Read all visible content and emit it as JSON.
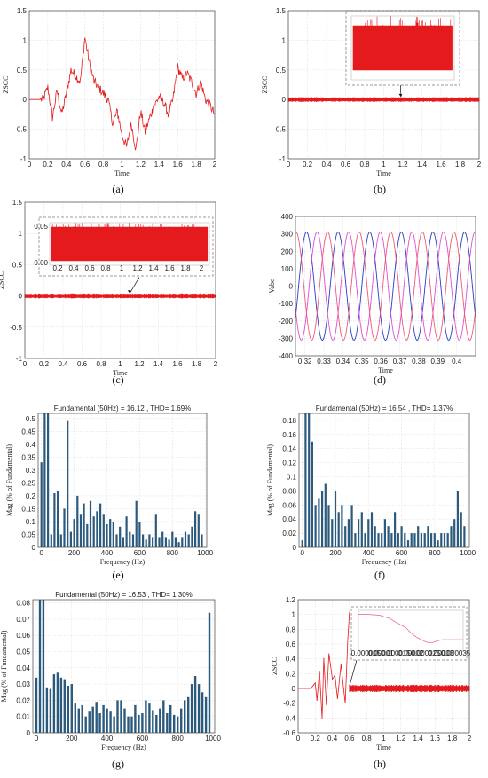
{
  "captions": [
    "(a)",
    "(b)",
    "(c)",
    "(d)",
    "(e)",
    "(f)",
    "(g)",
    "(h)"
  ],
  "colors": {
    "red": "#e41a1c",
    "blue": "#2a3cc8",
    "magenta": "#e04fd0",
    "pink": "#ef5a7a",
    "bar": "#2b5a7d",
    "grid": "#d0d0d0",
    "frame": "#444444"
  },
  "chart_data": [
    {
      "id": "a",
      "type": "line",
      "subtype": "noisy-signal",
      "xlabel": "Time",
      "ylabel": "ZSCC",
      "xlim": [
        0,
        2
      ],
      "ylim": [
        -1,
        1.5
      ],
      "xticks": [
        "0",
        "0.2",
        "0.4",
        "0.6",
        "0.8",
        "1",
        "1.2",
        "1.4",
        "1.6",
        "1.8",
        "2"
      ],
      "yticks": [
        "-1",
        "-0.5",
        "0",
        "0.5",
        "1",
        "1.5"
      ],
      "x": [
        0,
        0.1,
        0.15,
        0.2,
        0.25,
        0.3,
        0.35,
        0.4,
        0.45,
        0.5,
        0.55,
        0.6,
        0.65,
        0.7,
        0.75,
        0.8,
        0.85,
        0.9,
        0.95,
        1.0,
        1.05,
        1.1,
        1.15,
        1.2,
        1.25,
        1.3,
        1.35,
        1.4,
        1.45,
        1.5,
        1.55,
        1.6,
        1.65,
        1.7,
        1.75,
        1.8,
        1.85,
        1.9,
        1.95,
        2.0
      ],
      "y": [
        0,
        0,
        0,
        0.2,
        -0.3,
        0.15,
        -0.25,
        0.1,
        0.5,
        0.4,
        0.3,
        1.05,
        0.6,
        0.3,
        0.2,
        0.1,
        0.0,
        -0.4,
        -0.2,
        -0.6,
        -0.8,
        -0.4,
        -0.85,
        -0.2,
        -0.55,
        -0.3,
        -0.1,
        0.05,
        -0.05,
        -0.25,
        0.0,
        0.55,
        0.35,
        0.45,
        0.3,
        0.1,
        0.3,
        0.0,
        -0.1,
        -0.25
      ],
      "noise_amplitude": 0.08
    },
    {
      "id": "b",
      "type": "line",
      "subtype": "dense-band",
      "xlabel": "Time",
      "ylabel": "ZSCC",
      "xlim": [
        0,
        2
      ],
      "ylim": [
        -1,
        1.5
      ],
      "xticks": [
        "0",
        "0.2",
        "0.4",
        "0.6",
        "0.8",
        "1",
        "1.2",
        "1.4",
        "1.6",
        "1.8",
        "2"
      ],
      "yticks": [
        "-1",
        "-0.5",
        "0",
        "0.5",
        "1",
        "1.5"
      ],
      "band_center": 0,
      "band_halfwidth": 0.04,
      "inset": {
        "band_low": 0.15,
        "band_high": 0.85
      }
    },
    {
      "id": "c",
      "type": "line",
      "subtype": "dense-band",
      "xlabel": "Time",
      "ylabel": "ZSCC",
      "xlim": [
        0,
        2
      ],
      "ylim": [
        -1,
        1.5
      ],
      "xticks": [
        "0",
        "0.2",
        "0.4",
        "0.6",
        "0.8",
        "1",
        "1.2",
        "1.4",
        "1.6",
        "1.8",
        "2"
      ],
      "yticks": [
        "-1",
        "-0.5",
        "0",
        "0.5",
        "1",
        "1.5"
      ],
      "band_center": 0,
      "band_halfwidth": 0.04,
      "inset": {
        "band_low": 0.1,
        "band_high": 0.9,
        "xticks": [
          "0.2",
          "0.4",
          "0.6",
          "0.8",
          "1",
          "1.2",
          "1.4",
          "1.6",
          "1.8",
          "2"
        ],
        "yticks": [
          "0.00",
          "0.05"
        ]
      }
    },
    {
      "id": "d",
      "type": "line",
      "subtype": "three-phase",
      "xlabel": "Time",
      "ylabel": "Vabc",
      "xlim": [
        0.315,
        0.41
      ],
      "ylim": [
        -400,
        400
      ],
      "xticks": [
        "0.32",
        "0.33",
        "0.34",
        "0.35",
        "0.36",
        "0.37",
        "0.38",
        "0.39",
        "0.4"
      ],
      "xtick_values": [
        0.32,
        0.33,
        0.34,
        0.35,
        0.36,
        0.37,
        0.38,
        0.39,
        0.4
      ],
      "yticks": [
        "-400",
        "-300",
        "-200",
        "-100",
        "0",
        "100",
        "200",
        "300",
        "400"
      ],
      "amplitude": 311,
      "frequency_hz": 60,
      "series": [
        {
          "color_key": "blue",
          "phase_deg": 0
        },
        {
          "color_key": "magenta",
          "phase_deg": -120
        },
        {
          "color_key": "pink",
          "phase_deg": 120
        }
      ]
    },
    {
      "id": "e",
      "type": "bar",
      "title": "Fundamental (50Hz) = 16.12 , THD= 1.69%",
      "xlabel": "Frequency (Hz)",
      "ylabel": "Mag (% of Fundamental)",
      "xlim": [
        -20,
        1010
      ],
      "ylim": [
        0,
        0.52
      ],
      "xticks": [
        "0",
        "200",
        "400",
        "600",
        "800",
        "1000"
      ],
      "yticks": [
        "0",
        "0.05",
        "0.1",
        "0.15",
        "0.2",
        "0.25",
        "0.3",
        "0.35",
        "0.4",
        "0.45",
        "0.5"
      ],
      "bar_width_hz": 12,
      "x": [
        0,
        20,
        40,
        60,
        80,
        100,
        120,
        140,
        160,
        180,
        200,
        220,
        240,
        260,
        280,
        300,
        320,
        340,
        360,
        380,
        400,
        420,
        440,
        460,
        480,
        500,
        520,
        540,
        560,
        580,
        600,
        620,
        640,
        660,
        680,
        700,
        720,
        740,
        760,
        780,
        800,
        820,
        840,
        860,
        880,
        900,
        920,
        940,
        960,
        980
      ],
      "y": [
        0.33,
        0.52,
        0.52,
        0.05,
        0.21,
        0.22,
        0.05,
        0.15,
        0.49,
        0.06,
        0.11,
        0.2,
        0.13,
        0.17,
        0.09,
        0.18,
        0.12,
        0.14,
        0.17,
        0.13,
        0.09,
        0.11,
        0.1,
        0.05,
        0.08,
        0.04,
        0.12,
        0.06,
        0.05,
        0.18,
        0.1,
        0.05,
        0.03,
        0.05,
        0.04,
        0.13,
        0.04,
        0.06,
        0.04,
        0.03,
        0.06,
        0.04,
        0.02,
        0.04,
        0.06,
        0.05,
        0.08,
        0.14,
        0.13,
        0.05
      ]
    },
    {
      "id": "f",
      "type": "bar",
      "title": "Fundamental (50Hz) = 16.54 , THD= 1.37%",
      "xlabel": "Frequency (Hz)",
      "ylabel": "Mag (% of Fundamental)",
      "xlim": [
        -20,
        1010
      ],
      "ylim": [
        0,
        0.19
      ],
      "xticks": [
        "0",
        "200",
        "400",
        "600",
        "800",
        "1000"
      ],
      "yticks": [
        "0",
        "0.02",
        "0.04",
        "0.06",
        "0.08",
        "0.1",
        "0.12",
        "0.14",
        "0.16",
        "0.18"
      ],
      "bar_width_hz": 12,
      "x": [
        0,
        20,
        40,
        60,
        80,
        100,
        120,
        140,
        160,
        180,
        200,
        220,
        240,
        260,
        280,
        300,
        320,
        340,
        360,
        380,
        400,
        420,
        440,
        460,
        480,
        500,
        520,
        540,
        560,
        580,
        600,
        620,
        640,
        660,
        680,
        700,
        720,
        740,
        760,
        780,
        800,
        820,
        840,
        860,
        880,
        900,
        920,
        940,
        960,
        980
      ],
      "y": [
        0.01,
        0.19,
        0.19,
        0.15,
        0.06,
        0.07,
        0.08,
        0.09,
        0.06,
        0.04,
        0.08,
        0.05,
        0.06,
        0.03,
        0.04,
        0.06,
        0.02,
        0.04,
        0.05,
        0.02,
        0.04,
        0.05,
        0.03,
        0.02,
        0.02,
        0.04,
        0.03,
        0.02,
        0.05,
        0.02,
        0.03,
        0.02,
        0.01,
        0.02,
        0.02,
        0.03,
        0.02,
        0.02,
        0.03,
        0.02,
        0.02,
        0.01,
        0.02,
        0.02,
        0.02,
        0.03,
        0.04,
        0.08,
        0.05,
        0.03
      ]
    },
    {
      "id": "g",
      "type": "bar",
      "title": "Fundamental (50Hz) = 16.53 , THD= 1.30%",
      "xlabel": "Frequency (Hz)",
      "ylabel": "Mag (% of Fundamental)",
      "xlim": [
        -20,
        1010
      ],
      "ylim": [
        0,
        0.082
      ],
      "xticks": [
        "0",
        "200",
        "400",
        "600",
        "800",
        "1000"
      ],
      "yticks": [
        "0",
        "0.01",
        "0.02",
        "0.03",
        "0.04",
        "0.05",
        "0.06",
        "0.07",
        "0.08"
      ],
      "bar_width_hz": 12,
      "x": [
        0,
        20,
        40,
        60,
        80,
        100,
        120,
        140,
        160,
        180,
        200,
        220,
        240,
        260,
        280,
        300,
        320,
        340,
        360,
        380,
        400,
        420,
        440,
        460,
        480,
        500,
        520,
        540,
        560,
        580,
        600,
        620,
        640,
        660,
        680,
        700,
        720,
        740,
        760,
        780,
        800,
        820,
        840,
        860,
        880,
        900,
        920,
        940,
        960,
        980
      ],
      "y": [
        0.034,
        0.082,
        0.082,
        0.028,
        0.027,
        0.036,
        0.037,
        0.034,
        0.033,
        0.029,
        0.03,
        0.018,
        0.015,
        0.017,
        0.01,
        0.013,
        0.016,
        0.019,
        0.012,
        0.017,
        0.015,
        0.013,
        0.01,
        0.02,
        0.02,
        0.015,
        0.01,
        0.01,
        0.017,
        0.011,
        0.012,
        0.02,
        0.018,
        0.014,
        0.011,
        0.015,
        0.02,
        0.012,
        0.017,
        0.011,
        0.01,
        0.015,
        0.02,
        0.022,
        0.03,
        0.035,
        0.03,
        0.025,
        0.022,
        0.074
      ]
    },
    {
      "id": "h",
      "type": "line",
      "subtype": "transient-then-band",
      "xlabel": "Time",
      "ylabel": "ZSCC",
      "xlim": [
        0,
        2
      ],
      "ylim": [
        -0.6,
        1.2
      ],
      "xticks": [
        "0",
        "0.2",
        "0.4",
        "0.6",
        "0.8",
        "1",
        "1.2",
        "1.4",
        "1.6",
        "1.8",
        "2"
      ],
      "yticks": [
        "-0.6",
        "-0.4",
        "-0.2",
        "0",
        "0.2",
        "0.4",
        "0.6",
        "0.8",
        "1",
        "1.2"
      ],
      "transient_x": [
        0,
        0.15,
        0.2,
        0.22,
        0.25,
        0.28,
        0.3,
        0.33,
        0.36,
        0.4,
        0.43,
        0.46,
        0.5,
        0.53,
        0.55,
        0.58,
        0.6
      ],
      "transient_y": [
        0,
        0,
        0.05,
        -0.15,
        0.3,
        -0.35,
        0.45,
        -0.2,
        0.5,
        0.1,
        0.2,
        -0.1,
        0.3,
        0.0,
        -0.2,
        0.7,
        1.05
      ],
      "band_start": 0.6,
      "band_center": 0,
      "band_halfwidth": 0.05,
      "inset": {
        "xticks": [
          "0.000005",
          "0.00001",
          "0.000015",
          "0.00002",
          "0.000025",
          "0.00003",
          "0.000035"
        ],
        "step_x": [
          0,
          0.05,
          0.1,
          0.2,
          0.3,
          0.35,
          0.4,
          0.45,
          0.5,
          0.55,
          0.6,
          0.65,
          0.7,
          0.75,
          0.8,
          1.0
        ],
        "step_y": [
          0.9,
          0.9,
          0.9,
          0.88,
          0.8,
          0.72,
          0.65,
          0.58,
          0.45,
          0.35,
          0.28,
          0.22,
          0.2,
          0.25,
          0.28,
          0.28
        ]
      }
    }
  ]
}
